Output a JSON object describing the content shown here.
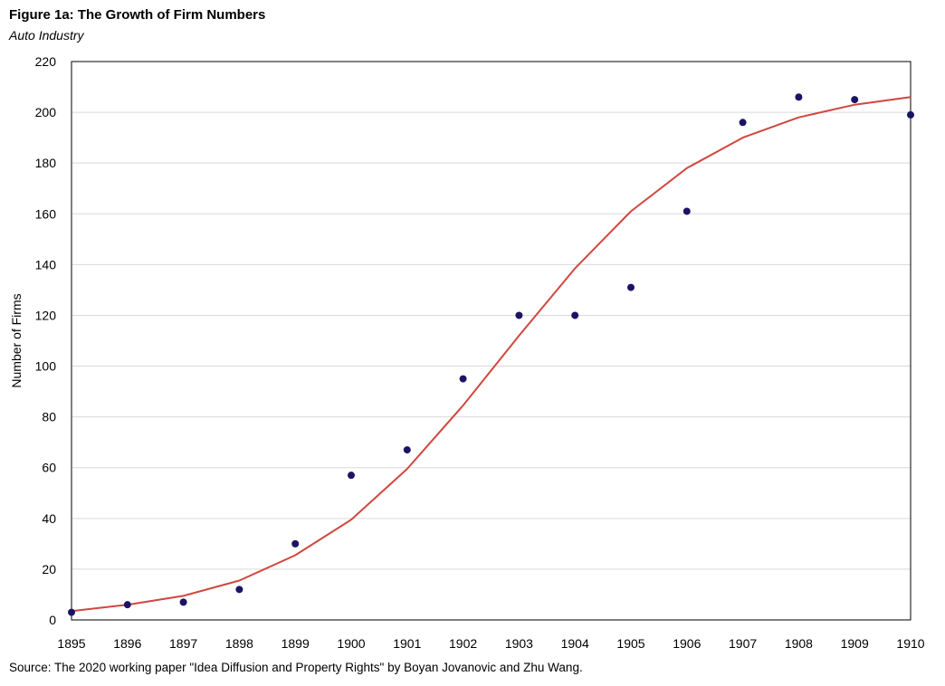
{
  "header": {
    "title": "Figure 1a: The Growth of Firm Numbers",
    "subtitle": "Auto Industry"
  },
  "footer": {
    "source": "Source: The 2020  working paper \"Idea Diffusion and Property Rights\" by Boyan Jovanovic and Zhu Wang."
  },
  "chart_data": {
    "type": "scatter",
    "title": "Figure 1a: The Growth of Firm Numbers",
    "subtitle": "Auto Industry",
    "xlabel": "",
    "ylabel": "Number of Firms",
    "xlim": [
      1895,
      1910
    ],
    "ylim": [
      0,
      220
    ],
    "grid": true,
    "x_ticks": [
      "1895",
      "1896",
      "1897",
      "1898",
      "1899",
      "1900",
      "1901",
      "1902",
      "1903",
      "1904",
      "1905",
      "1906",
      "1907",
      "1908",
      "1909",
      "1910"
    ],
    "y_ticks": [
      "0",
      "20",
      "40",
      "60",
      "80",
      "100",
      "120",
      "140",
      "160",
      "180",
      "200",
      "220"
    ],
    "series": [
      {
        "type": "scatter",
        "color": "#1b1464",
        "x": [
          1895,
          1896,
          1897,
          1898,
          1899,
          1900,
          1901,
          1902,
          1903,
          1904,
          1905,
          1906,
          1907,
          1908,
          1909,
          1910
        ],
        "y": [
          3,
          6,
          7,
          12,
          30,
          57,
          67,
          95,
          120,
          120,
          131,
          161,
          196,
          206,
          205,
          199
        ]
      },
      {
        "type": "line",
        "color": "#d0473f",
        "x": [
          1895,
          1896,
          1897,
          1898,
          1899,
          1900,
          1901,
          1902,
          1903,
          1904,
          1905,
          1906,
          1907,
          1908,
          1909,
          1910
        ],
        "y": [
          3.5,
          6,
          9.5,
          15.5,
          25.5,
          39.5,
          59.5,
          84.5,
          112,
          138.5,
          161,
          178,
          190,
          198,
          203,
          206
        ]
      }
    ]
  }
}
